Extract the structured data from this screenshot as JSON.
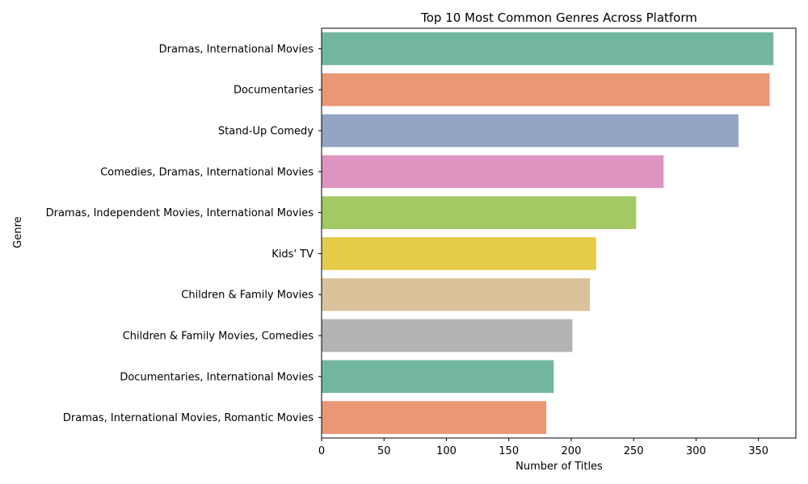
{
  "chart_data": {
    "type": "bar",
    "orientation": "horizontal",
    "title": "Top 10 Most Common Genres Across Platform",
    "xlabel": "Number of Titles",
    "ylabel": "Genre",
    "xlim": [
      0,
      380
    ],
    "xticks": [
      0,
      50,
      100,
      150,
      200,
      250,
      300,
      350
    ],
    "grid": false,
    "categories": [
      "Dramas, International Movies",
      "Documentaries",
      "Stand-Up Comedy",
      "Comedies, Dramas, International Movies",
      "Dramas, Independent Movies, International Movies",
      "Kids' TV",
      "Children & Family Movies",
      "Children & Family Movies, Comedies",
      "Documentaries, International Movies",
      "Dramas, International Movies, Romantic Movies"
    ],
    "values": [
      362,
      359,
      334,
      274,
      252,
      220,
      215,
      201,
      186,
      180
    ],
    "colors": [
      "#73b6a0",
      "#e99775",
      "#93a4c5",
      "#dd94c1",
      "#a2c964",
      "#e4cb4a",
      "#dbc29b",
      "#b3b3b3",
      "#73b6a0",
      "#e99775"
    ]
  }
}
